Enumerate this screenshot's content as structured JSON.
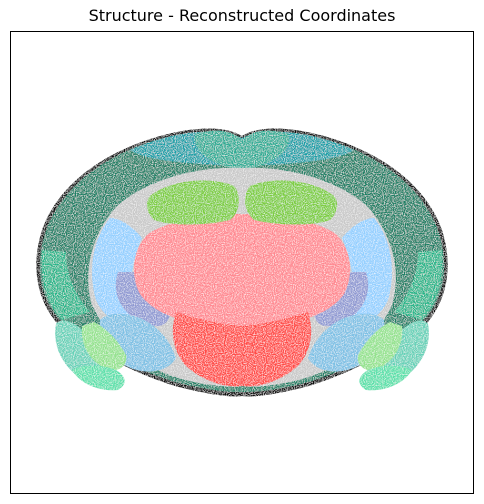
{
  "chart_data": {
    "type": "scatter",
    "title": "Structure - Reconstructed Coordinates",
    "xlabel": "",
    "ylabel": "",
    "axes_ticks": false,
    "grid": false,
    "legend": "none",
    "regions": [
      {
        "name": "",
        "color": "#1a8065"
      },
      {
        "name": "",
        "color": "#12a0a8"
      },
      {
        "name": "",
        "color": "#2aac94"
      },
      {
        "name": "",
        "color": "#22b589"
      },
      {
        "name": "",
        "color": "#7ccd3d"
      },
      {
        "name": "",
        "color": "#c8c8c8"
      },
      {
        "name": "",
        "color": "#ff8890"
      },
      {
        "name": "",
        "color": "#ff4844"
      },
      {
        "name": "",
        "color": "#92cfff"
      },
      {
        "name": "",
        "color": "#8e98d2"
      },
      {
        "name": "",
        "color": "#7cc0e4"
      },
      {
        "name": "",
        "color": "#66d1b8"
      },
      {
        "name": "",
        "color": "#93e28d"
      },
      {
        "name": "",
        "color": "#58e0aa"
      },
      {
        "name": "",
        "color": "#111111"
      }
    ]
  }
}
